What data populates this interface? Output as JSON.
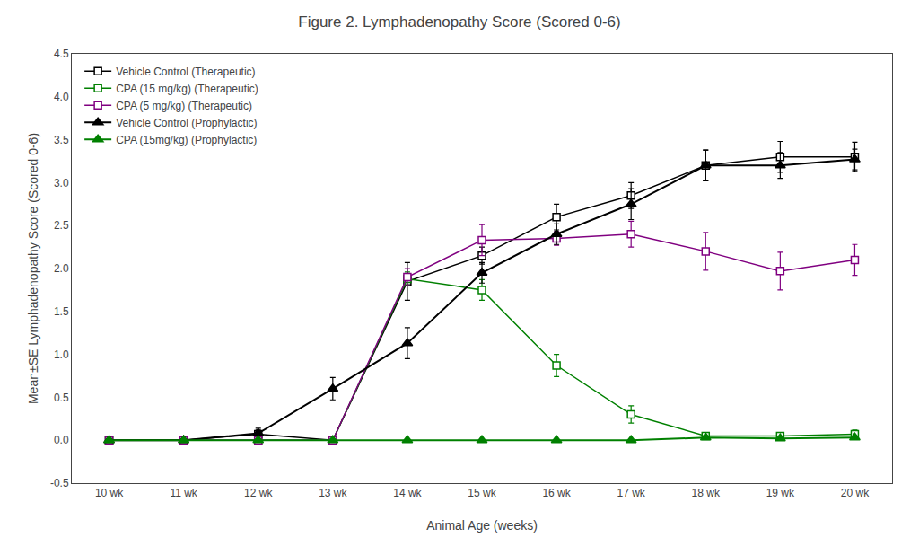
{
  "chart_data": {
    "type": "line",
    "title": "Figure 2. Lymphadenopathy Score (Scored 0-6)",
    "xlabel": "Animal Age (weeks)",
    "ylabel": "Mean±SE Lymphadenopathy Score (Scored 0-6)",
    "x": [
      10,
      11,
      12,
      13,
      14,
      15,
      16,
      17,
      18,
      19,
      20
    ],
    "xlim": [
      9.5,
      20.5
    ],
    "xticks": [
      {
        "value": 10,
        "label": "10 wk"
      },
      {
        "value": 11,
        "label": "11 wk"
      },
      {
        "value": 12,
        "label": "12 wk"
      },
      {
        "value": 13,
        "label": "13 wk"
      },
      {
        "value": 14,
        "label": "14 wk"
      },
      {
        "value": 15,
        "label": "15 wk"
      },
      {
        "value": 16,
        "label": "16 wk"
      },
      {
        "value": 17,
        "label": "17 wk"
      },
      {
        "value": 18,
        "label": "18 wk"
      },
      {
        "value": 19,
        "label": "19 wk"
      },
      {
        "value": 20,
        "label": "20 wk"
      }
    ],
    "ylim": [
      -0.5,
      4.5
    ],
    "yticks": [
      -0.5,
      {
        "value": 0,
        "label": "0.0"
      },
      0.5,
      {
        "value": 1,
        "label": "1.0"
      },
      1.5,
      {
        "value": 2,
        "label": "2.0"
      },
      2.5,
      {
        "value": 3,
        "label": "3.0"
      },
      3.5,
      {
        "value": 4,
        "label": "4.0"
      },
      4.5
    ],
    "grid": false,
    "legend": "upper left",
    "series": [
      {
        "name": "Vehicle Control (Therapeutic)",
        "color": "#000000",
        "marker": "square-open",
        "line_style": "solid",
        "values": [
          0.0,
          0.0,
          0.07,
          0.0,
          1.85,
          2.15,
          2.6,
          2.85,
          3.2,
          3.3,
          3.3
        ],
        "yerr": [
          0.03,
          0.03,
          0.05,
          0.03,
          0.22,
          0.1,
          0.15,
          0.15,
          0.18,
          0.18,
          0.17
        ]
      },
      {
        "name": "CPA (15 mg/kg) (Therapeutic)",
        "color": "#008000",
        "marker": "square-open",
        "line_style": "solid",
        "values": [
          0.0,
          0.0,
          0.0,
          0.0,
          1.88,
          1.75,
          0.87,
          0.3,
          0.05,
          0.05,
          0.07
        ],
        "yerr": [
          0.02,
          0.02,
          0.02,
          0.02,
          0.08,
          0.12,
          0.13,
          0.1,
          0.04,
          0.03,
          0.05
        ]
      },
      {
        "name": "CPA (5 mg/kg) (Therapeutic)",
        "color": "#800080",
        "marker": "square-open",
        "line_style": "solid",
        "values": [
          0.0,
          0.0,
          0.0,
          0.0,
          1.9,
          2.33,
          2.35,
          2.4,
          2.2,
          1.97,
          2.1
        ],
        "yerr": [
          0.02,
          0.02,
          0.02,
          0.02,
          0.1,
          0.18,
          0.08,
          0.15,
          0.22,
          0.22,
          0.18
        ]
      },
      {
        "name": "Vehicle Control (Prophylactic)",
        "color": "#000000",
        "marker": "triangle-up",
        "line_style": "solid",
        "values": [
          0.0,
          0.0,
          0.08,
          0.6,
          1.13,
          1.95,
          2.4,
          2.75,
          3.2,
          3.2,
          3.27
        ],
        "yerr": [
          0.02,
          0.02,
          0.06,
          0.13,
          0.18,
          0.12,
          0.12,
          0.18,
          0.18,
          0.15,
          0.12
        ]
      },
      {
        "name": "CPA (15mg/kg) (Prophylactic)",
        "color": "#008000",
        "marker": "triangle-up",
        "line_style": "solid",
        "values": [
          0.0,
          0.0,
          0.0,
          0.0,
          0.0,
          0.0,
          0.0,
          0.0,
          0.03,
          0.02,
          0.03
        ],
        "yerr": [
          0.01,
          0.01,
          0.01,
          0.01,
          0.01,
          0.01,
          0.01,
          0.01,
          0.02,
          0.01,
          0.02
        ]
      }
    ]
  }
}
